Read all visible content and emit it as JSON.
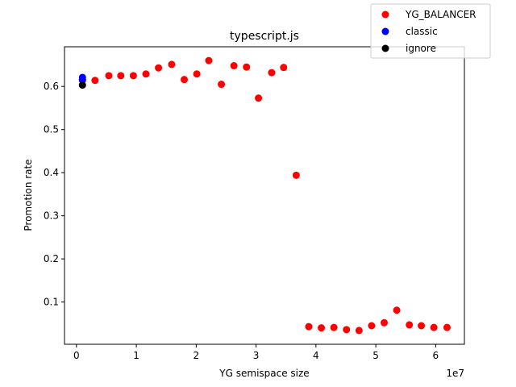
{
  "chart_data": {
    "type": "scatter",
    "title": "typescript.js",
    "xlabel": "YG semispace size",
    "ylabel": "Promotion rate",
    "x_offset_label": "1e7",
    "x_scale": 10000000,
    "xlim": [
      -2000000,
      64800000
    ],
    "ylim": [
      0.002,
      0.692
    ],
    "x_ticks": [
      0,
      10000000,
      20000000,
      30000000,
      40000000,
      50000000,
      60000000
    ],
    "x_tick_labels": [
      "0",
      "1",
      "2",
      "3",
      "4",
      "5",
      "6"
    ],
    "y_ticks": [
      0.1,
      0.2,
      0.3,
      0.4,
      0.5,
      0.6
    ],
    "y_tick_labels": [
      "0.1",
      "0.2",
      "0.3",
      "0.4",
      "0.5",
      "0.6"
    ],
    "grid": false,
    "legend_position": "top-right",
    "series": [
      {
        "name": "YG_BALANCER",
        "color": "#ff0000",
        "points": [
          [
            1000000,
            0.614
          ],
          [
            3100000,
            0.614
          ],
          [
            5400000,
            0.625
          ],
          [
            7400000,
            0.625
          ],
          [
            9500000,
            0.625
          ],
          [
            11600000,
            0.629
          ],
          [
            13700000,
            0.643
          ],
          [
            15900000,
            0.651
          ],
          [
            18000000,
            0.616
          ],
          [
            20100000,
            0.629
          ],
          [
            22100000,
            0.66
          ],
          [
            24200000,
            0.605
          ],
          [
            26300000,
            0.648
          ],
          [
            28400000,
            0.645
          ],
          [
            30400000,
            0.573
          ],
          [
            32600000,
            0.632
          ],
          [
            34600000,
            0.644
          ],
          [
            36700000,
            0.394
          ],
          [
            38800000,
            0.043
          ],
          [
            40900000,
            0.04
          ],
          [
            43000000,
            0.041
          ],
          [
            45100000,
            0.036
          ],
          [
            47200000,
            0.034
          ],
          [
            49300000,
            0.045
          ],
          [
            51400000,
            0.052
          ],
          [
            53500000,
            0.081
          ],
          [
            55600000,
            0.047
          ],
          [
            57600000,
            0.045
          ],
          [
            59700000,
            0.041
          ],
          [
            61900000,
            0.041
          ]
        ]
      },
      {
        "name": "classic",
        "color": "#0000ff",
        "points": [
          [
            1000000,
            0.621
          ],
          [
            1000000,
            0.616
          ]
        ]
      },
      {
        "name": "ignore",
        "color": "#000000",
        "points": [
          [
            1000000,
            0.603
          ]
        ]
      }
    ]
  }
}
